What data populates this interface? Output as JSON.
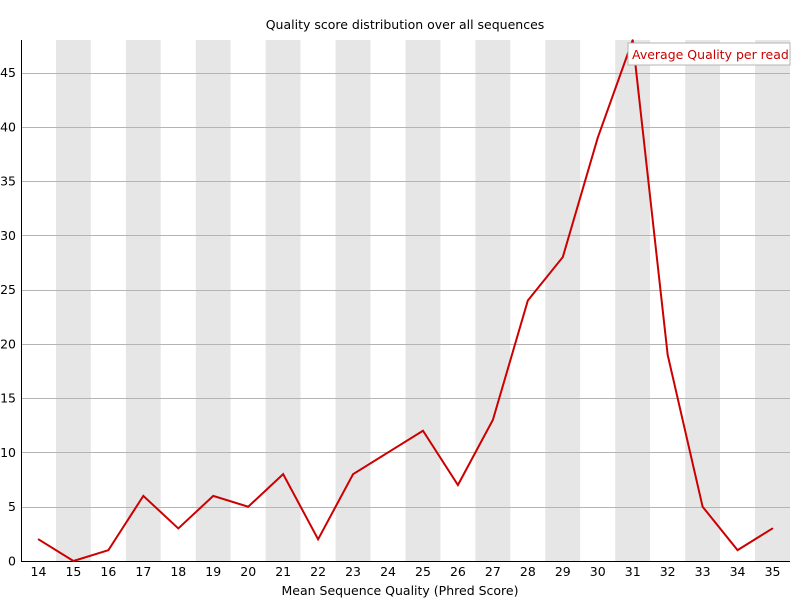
{
  "chart_data": {
    "type": "line",
    "title": "Quality score distribution over all sequences",
    "xlabel": "Mean Sequence Quality (Phred Score)",
    "ylabel": "",
    "x": [
      14,
      15,
      16,
      17,
      18,
      19,
      20,
      21,
      22,
      23,
      24,
      25,
      26,
      27,
      28,
      29,
      30,
      31,
      32,
      33,
      34,
      35
    ],
    "x_tick_labels": [
      "14",
      "15",
      "16",
      "17",
      "18",
      "19",
      "20",
      "21",
      "22",
      "23",
      "24",
      "25",
      "26",
      "27",
      "28",
      "29",
      "30",
      "31",
      "32",
      "33",
      "34",
      "35"
    ],
    "y_ticks": [
      0,
      5,
      10,
      15,
      20,
      25,
      30,
      35,
      40,
      45
    ],
    "y_tick_labels": [
      "0",
      "5",
      "10",
      "15",
      "20",
      "25",
      "30",
      "35",
      "40",
      "45"
    ],
    "ylim": [
      0,
      48
    ],
    "series": [
      {
        "name": "Average Quality per read",
        "color": "#cc0000",
        "values": [
          2,
          0,
          1,
          6,
          3,
          6,
          5,
          8,
          2,
          8,
          10,
          12,
          7,
          13,
          24,
          28,
          39,
          48,
          19,
          5,
          1,
          3
        ]
      }
    ],
    "legend_position": "top-right",
    "grid": true,
    "band_colors": [
      "#ffffff",
      "#e6e6e6"
    ],
    "grid_color": "#b4b4b4",
    "axis_color": "#000000"
  }
}
